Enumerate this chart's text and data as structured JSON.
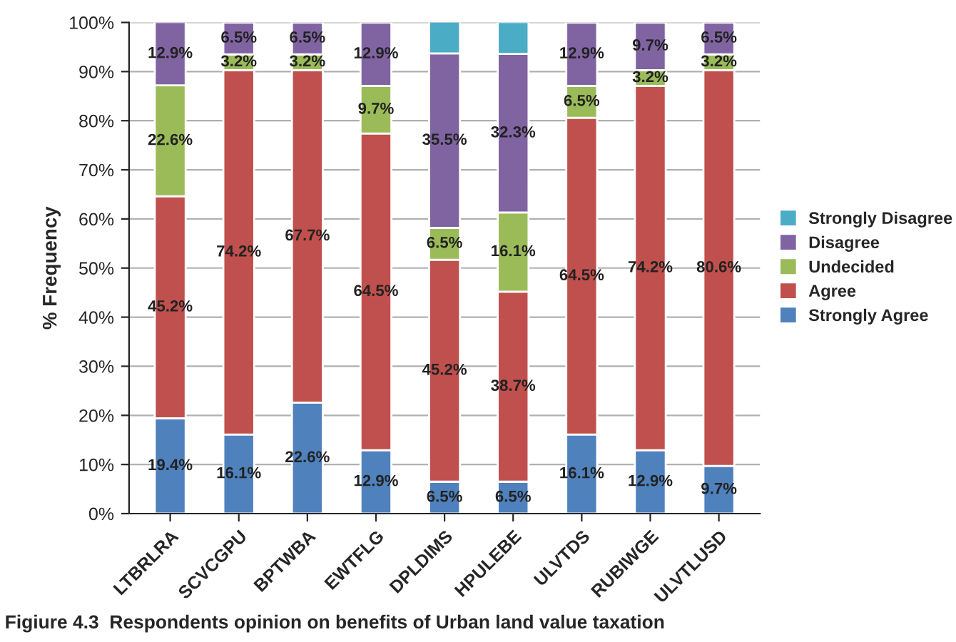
{
  "chart_data": {
    "type": "bar",
    "stacked": true,
    "ylabel": "% Frequency",
    "categories": [
      "LTBRLRA",
      "SCVCGPU",
      "BPTWBA",
      "EWTFLG",
      "DPLDIMS",
      "HPULEBE",
      "ULVTDS",
      "RUBIWGE",
      "ULVTLUSD"
    ],
    "series": [
      {
        "name": "Strongly Agree",
        "color": "#4f81bd",
        "values": [
          19.4,
          16.1,
          22.6,
          12.9,
          6.5,
          6.5,
          16.1,
          12.9,
          9.7
        ],
        "value_labels": [
          "19.4%",
          "16.1%",
          "22.6%",
          "12.9%",
          "6.5%",
          "6.5%",
          "16.1%",
          "12.9%",
          "9.7%"
        ]
      },
      {
        "name": "Agree",
        "color": "#c0504d",
        "values": [
          45.2,
          74.2,
          67.7,
          64.5,
          45.2,
          38.7,
          64.5,
          74.2,
          80.6
        ],
        "value_labels": [
          "45.2%",
          "74.2%",
          "67.7%",
          "64.5%",
          "45.2%",
          "38.7%",
          "64.5%",
          "74.2%",
          "80.6%"
        ]
      },
      {
        "name": "Undecided",
        "color": "#9bbb59",
        "values": [
          22.6,
          3.2,
          3.2,
          9.7,
          6.5,
          16.1,
          6.5,
          3.2,
          3.2
        ],
        "value_labels": [
          "22.6%",
          "3.2%",
          "3.2%",
          "9.7%",
          "6.5%",
          "16.1%",
          "6.5%",
          "3.2%",
          "3.2%"
        ]
      },
      {
        "name": "Disagree",
        "color": "#8064a2",
        "values": [
          12.9,
          6.5,
          6.5,
          12.9,
          35.5,
          32.3,
          12.9,
          9.7,
          6.5
        ],
        "value_labels": [
          "12.9%",
          "6.5%",
          "6.5%",
          "12.9%",
          "35.5%",
          "32.3%",
          "12.9%",
          "9.7%",
          "6.5%"
        ]
      },
      {
        "name": "Strongly Disagree",
        "color": "#4bacc6",
        "values": [
          null,
          null,
          null,
          null,
          6.5,
          6.5,
          null,
          null,
          null
        ]
      }
    ],
    "ylim": [
      0,
      100
    ],
    "yticks": [
      {
        "value": 0,
        "label": "0%"
      },
      {
        "value": 10,
        "label": "10%"
      },
      {
        "value": 20,
        "label": "20%"
      },
      {
        "value": 30,
        "label": "30%"
      },
      {
        "value": 40,
        "label": "40%"
      },
      {
        "value": 50,
        "label": "50%"
      },
      {
        "value": 60,
        "label": "60%"
      },
      {
        "value": 70,
        "label": "70%"
      },
      {
        "value": 80,
        "label": "80%"
      },
      {
        "value": 90,
        "label": "90%"
      },
      {
        "value": 100,
        "label": "100%"
      }
    ],
    "grid": "y",
    "legend": "right",
    "annotations": [
      "Figiure 4.3  Respondents opinion on benefits of Urban land value taxation"
    ]
  }
}
